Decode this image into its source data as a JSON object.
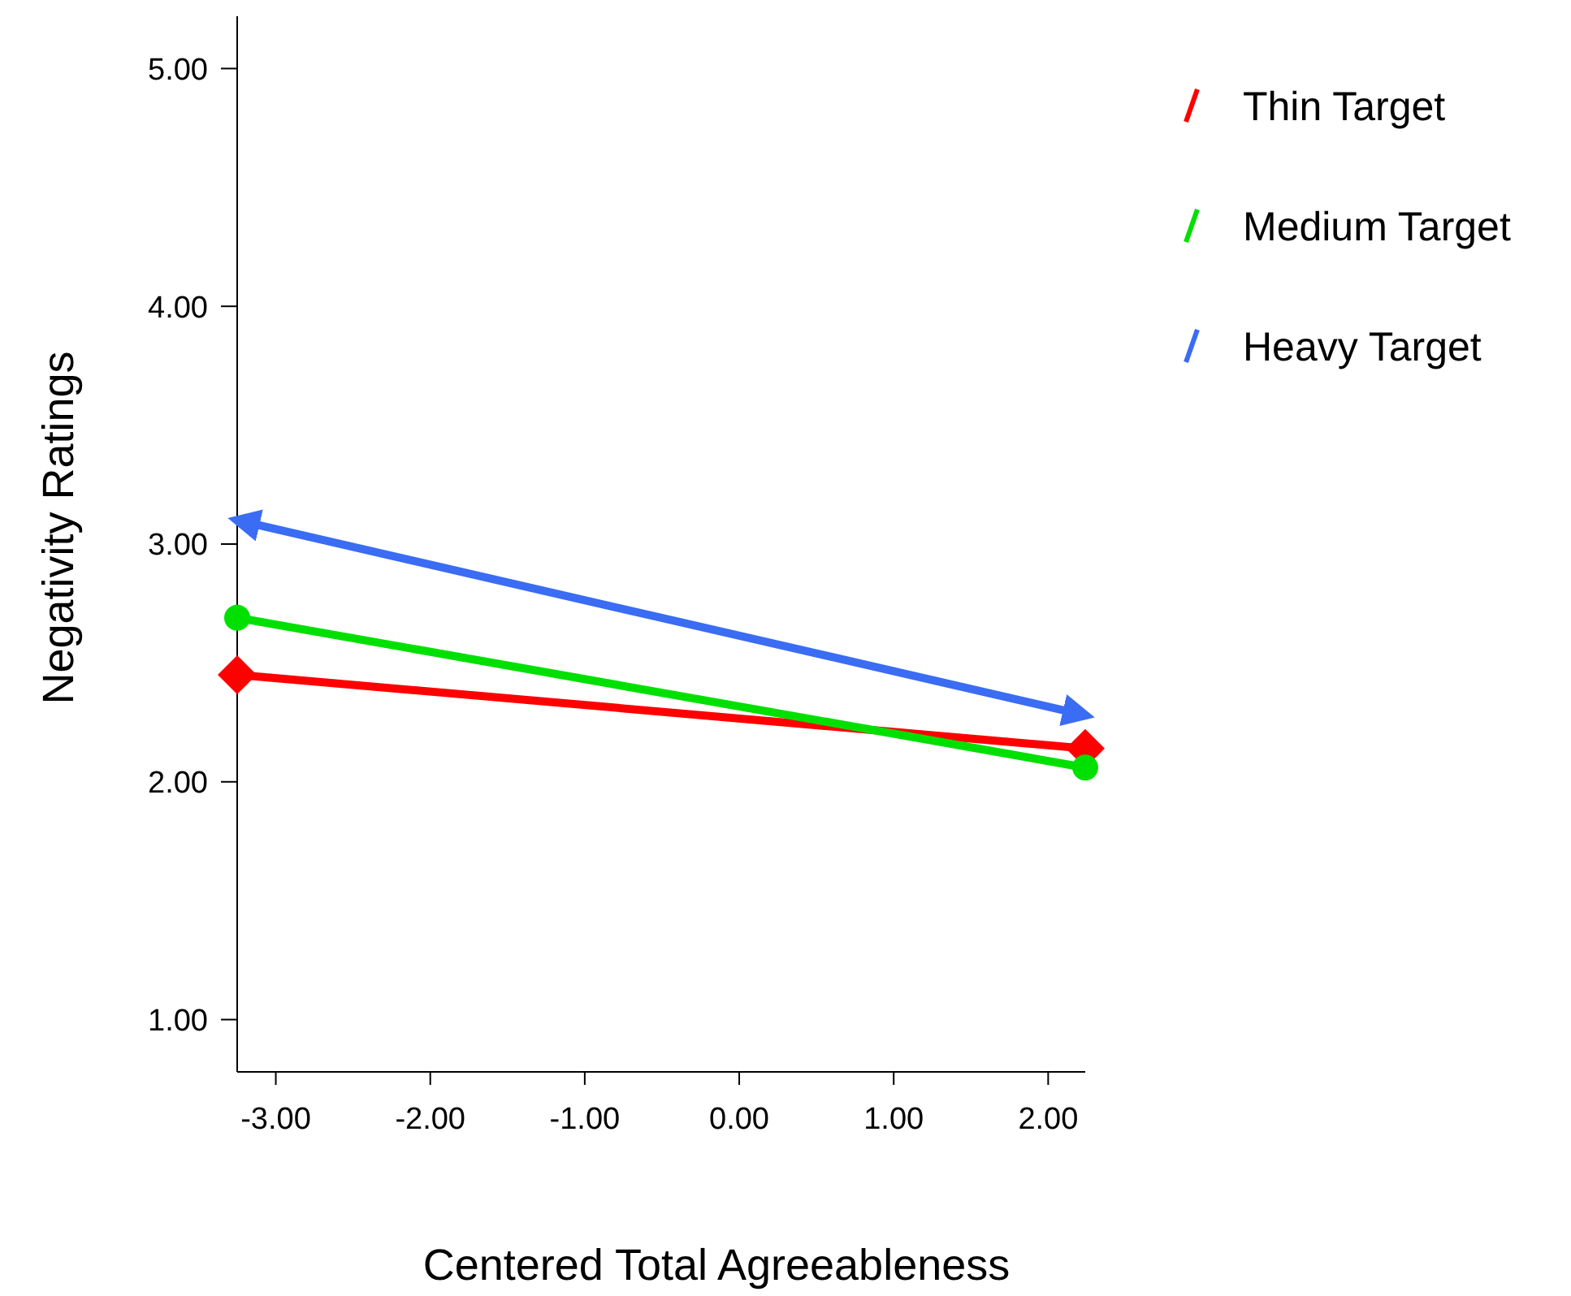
{
  "chart_data": {
    "type": "line",
    "xlabel": "Centered Total Agreeableness",
    "ylabel": "Negativity Ratings",
    "x": [
      -3.25,
      2.24
    ],
    "xlim": [
      -3.25,
      2.24
    ],
    "xticks": [
      {
        "value": -3,
        "label": "-3.00"
      },
      {
        "value": -2,
        "label": "-2.00"
      },
      {
        "value": -1,
        "label": "-1.00"
      },
      {
        "value": 0,
        "label": "0.00"
      },
      {
        "value": 1,
        "label": "1.00"
      },
      {
        "value": 2,
        "label": "2.00"
      }
    ],
    "ylim": [
      0.78,
      5.22
    ],
    "yticks": [
      {
        "value": 1,
        "label": "1.00"
      },
      {
        "value": 2,
        "label": "2.00"
      },
      {
        "value": 3,
        "label": "3.00"
      },
      {
        "value": 4,
        "label": "4.00"
      },
      {
        "value": 5,
        "label": "5.00"
      }
    ],
    "series": [
      {
        "name": "Thin Target",
        "color": "#ff0000",
        "values": [
          2.45,
          2.14
        ],
        "marker": "diamond"
      },
      {
        "name": "Medium Target",
        "color": "#00e000",
        "values": [
          2.69,
          2.06
        ],
        "marker": "circle"
      },
      {
        "name": "Heavy Target",
        "color": "#3a6cf4",
        "values": [
          3.1,
          2.28
        ],
        "marker": "none"
      }
    ],
    "grid": false,
    "legend": "right"
  }
}
